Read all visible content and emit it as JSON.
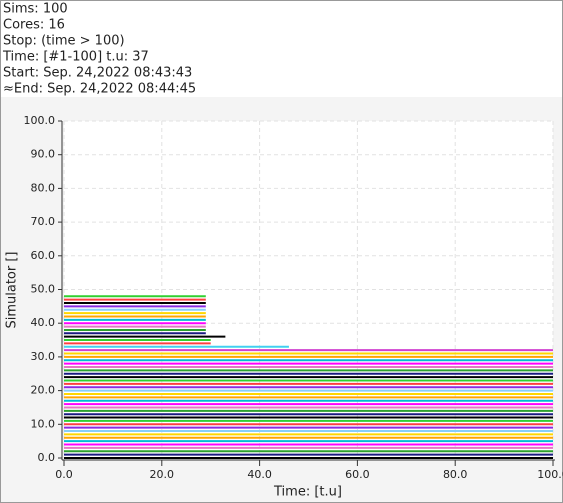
{
  "info": [
    "Sims: 100",
    "Cores: 16",
    "Stop: (time > 100)",
    "Time: [#1-100] t.u: 37",
    "Start: Sep. 24,2022 08:43:43",
    "≈End:  Sep. 24,2022 08:44:45"
  ],
  "chart_data": {
    "type": "line",
    "xlabel": "Time:  [t.u]",
    "ylabel": "Simulator []",
    "xlim": [
      0,
      100
    ],
    "ylim": [
      0,
      100
    ],
    "xticks": [
      {
        "value": 0,
        "label": "0.0"
      },
      {
        "value": 20,
        "label": "20.0"
      },
      {
        "value": 40,
        "label": "40.0"
      },
      {
        "value": 60,
        "label": "60.0"
      },
      {
        "value": 80,
        "label": "80.0"
      },
      {
        "value": 100,
        "label": "100.0"
      }
    ],
    "yticks": [
      {
        "value": 0,
        "label": "0.0"
      },
      {
        "value": 10,
        "label": "10.0"
      },
      {
        "value": 20,
        "label": "20.0"
      },
      {
        "value": 30,
        "label": "30.0"
      },
      {
        "value": 40,
        "label": "40.0"
      },
      {
        "value": 50,
        "label": "50.0"
      },
      {
        "value": 60,
        "label": "60.0"
      },
      {
        "value": 70,
        "label": "70.0"
      },
      {
        "value": 80,
        "label": "80.0"
      },
      {
        "value": 90,
        "label": "90.0"
      },
      {
        "value": 100,
        "label": "100.0"
      }
    ],
    "grid": true,
    "series": [
      {
        "color": "#000000",
        "x": [
          0,
          100
        ],
        "values": [
          0,
          0
        ]
      },
      {
        "color": "#1a1a80",
        "x": [
          0,
          100
        ],
        "values": [
          1,
          1
        ]
      },
      {
        "color": "#2ca02c",
        "x": [
          0,
          100
        ],
        "values": [
          2,
          2
        ]
      },
      {
        "color": "#e377c2",
        "x": [
          0,
          100
        ],
        "values": [
          3,
          3
        ]
      },
      {
        "color": "#ff00ff",
        "x": [
          0,
          100
        ],
        "values": [
          4,
          4
        ]
      },
      {
        "color": "#00bcd4",
        "x": [
          0,
          100
        ],
        "values": [
          5,
          5
        ]
      },
      {
        "color": "#ffa500",
        "x": [
          0,
          100
        ],
        "values": [
          6,
          6
        ]
      },
      {
        "color": "#ffd700",
        "x": [
          0,
          100
        ],
        "values": [
          7,
          7
        ]
      },
      {
        "color": "#87cefa",
        "x": [
          0,
          100
        ],
        "values": [
          8,
          8
        ]
      },
      {
        "color": "#8a2be2",
        "x": [
          0,
          100
        ],
        "values": [
          9,
          9
        ]
      },
      {
        "color": "#ff4040",
        "x": [
          0,
          100
        ],
        "values": [
          10,
          10
        ]
      },
      {
        "color": "#30d030",
        "x": [
          0,
          100
        ],
        "values": [
          11,
          11
        ]
      },
      {
        "color": "#000000",
        "x": [
          0,
          100
        ],
        "values": [
          12,
          12
        ]
      },
      {
        "color": "#1a1a80",
        "x": [
          0,
          100
        ],
        "values": [
          13,
          13
        ]
      },
      {
        "color": "#2ca02c",
        "x": [
          0,
          100
        ],
        "values": [
          14,
          14
        ]
      },
      {
        "color": "#e377c2",
        "x": [
          0,
          100
        ],
        "values": [
          15,
          15
        ]
      },
      {
        "color": "#ff00ff",
        "x": [
          0,
          100
        ],
        "values": [
          16,
          16
        ]
      },
      {
        "color": "#00bcd4",
        "x": [
          0,
          100
        ],
        "values": [
          17,
          17
        ]
      },
      {
        "color": "#ffa500",
        "x": [
          0,
          100
        ],
        "values": [
          18,
          18
        ]
      },
      {
        "color": "#ffd700",
        "x": [
          0,
          100
        ],
        "values": [
          19,
          19
        ]
      },
      {
        "color": "#87cefa",
        "x": [
          0,
          100
        ],
        "values": [
          20,
          20
        ]
      },
      {
        "color": "#8a2be2",
        "x": [
          0,
          100
        ],
        "values": [
          21,
          21
        ]
      },
      {
        "color": "#ff4040",
        "x": [
          0,
          100
        ],
        "values": [
          22,
          22
        ]
      },
      {
        "color": "#30d030",
        "x": [
          0,
          100
        ],
        "values": [
          23,
          23
        ]
      },
      {
        "color": "#000000",
        "x": [
          0,
          100
        ],
        "values": [
          24,
          24
        ]
      },
      {
        "color": "#1a1a80",
        "x": [
          0,
          100
        ],
        "values": [
          25,
          25
        ]
      },
      {
        "color": "#2ca02c",
        "x": [
          0,
          100
        ],
        "values": [
          26,
          26
        ]
      },
      {
        "color": "#e377c2",
        "x": [
          0,
          100
        ],
        "values": [
          27,
          27
        ]
      },
      {
        "color": "#ff00ff",
        "x": [
          0,
          100
        ],
        "values": [
          28,
          28
        ]
      },
      {
        "color": "#00bcd4",
        "x": [
          0,
          100
        ],
        "values": [
          29,
          29
        ]
      },
      {
        "color": "#ffa500",
        "x": [
          0,
          100
        ],
        "values": [
          30,
          30
        ]
      },
      {
        "color": "#ffd700",
        "x": [
          0,
          100
        ],
        "values": [
          31,
          31
        ]
      },
      {
        "color": "#d040d0",
        "x": [
          0,
          100
        ],
        "values": [
          32,
          32
        ]
      },
      {
        "color": "#40d0f0",
        "x": [
          0,
          46
        ],
        "values": [
          33,
          33
        ]
      },
      {
        "color": "#ff4040",
        "x": [
          0,
          30
        ],
        "values": [
          34,
          34
        ]
      },
      {
        "color": "#30d030",
        "x": [
          0,
          30
        ],
        "values": [
          35,
          35
        ]
      },
      {
        "color": "#000000",
        "x": [
          0,
          33
        ],
        "values": [
          36,
          36
        ]
      },
      {
        "color": "#1a1a80",
        "x": [
          0,
          29
        ],
        "values": [
          37,
          37
        ]
      },
      {
        "color": "#2ca02c",
        "x": [
          0,
          29
        ],
        "values": [
          38,
          38
        ]
      },
      {
        "color": "#e377c2",
        "x": [
          0,
          29
        ],
        "values": [
          39,
          39
        ]
      },
      {
        "color": "#ff00ff",
        "x": [
          0,
          29
        ],
        "values": [
          40,
          40
        ]
      },
      {
        "color": "#00bcd4",
        "x": [
          0,
          29
        ],
        "values": [
          41,
          41
        ]
      },
      {
        "color": "#ffa500",
        "x": [
          0,
          29
        ],
        "values": [
          42,
          42
        ]
      },
      {
        "color": "#ffd700",
        "x": [
          0,
          29
        ],
        "values": [
          43,
          43
        ]
      },
      {
        "color": "#87cefa",
        "x": [
          0,
          29
        ],
        "values": [
          44,
          44
        ]
      },
      {
        "color": "#8a2be2",
        "x": [
          0,
          29
        ],
        "values": [
          45,
          45
        ]
      },
      {
        "color": "#000000",
        "x": [
          0,
          29
        ],
        "values": [
          46,
          46
        ]
      },
      {
        "color": "#ff4040",
        "x": [
          0,
          29
        ],
        "values": [
          47,
          47
        ]
      },
      {
        "color": "#30d030",
        "x": [
          0,
          29
        ],
        "values": [
          48,
          48
        ]
      }
    ]
  }
}
